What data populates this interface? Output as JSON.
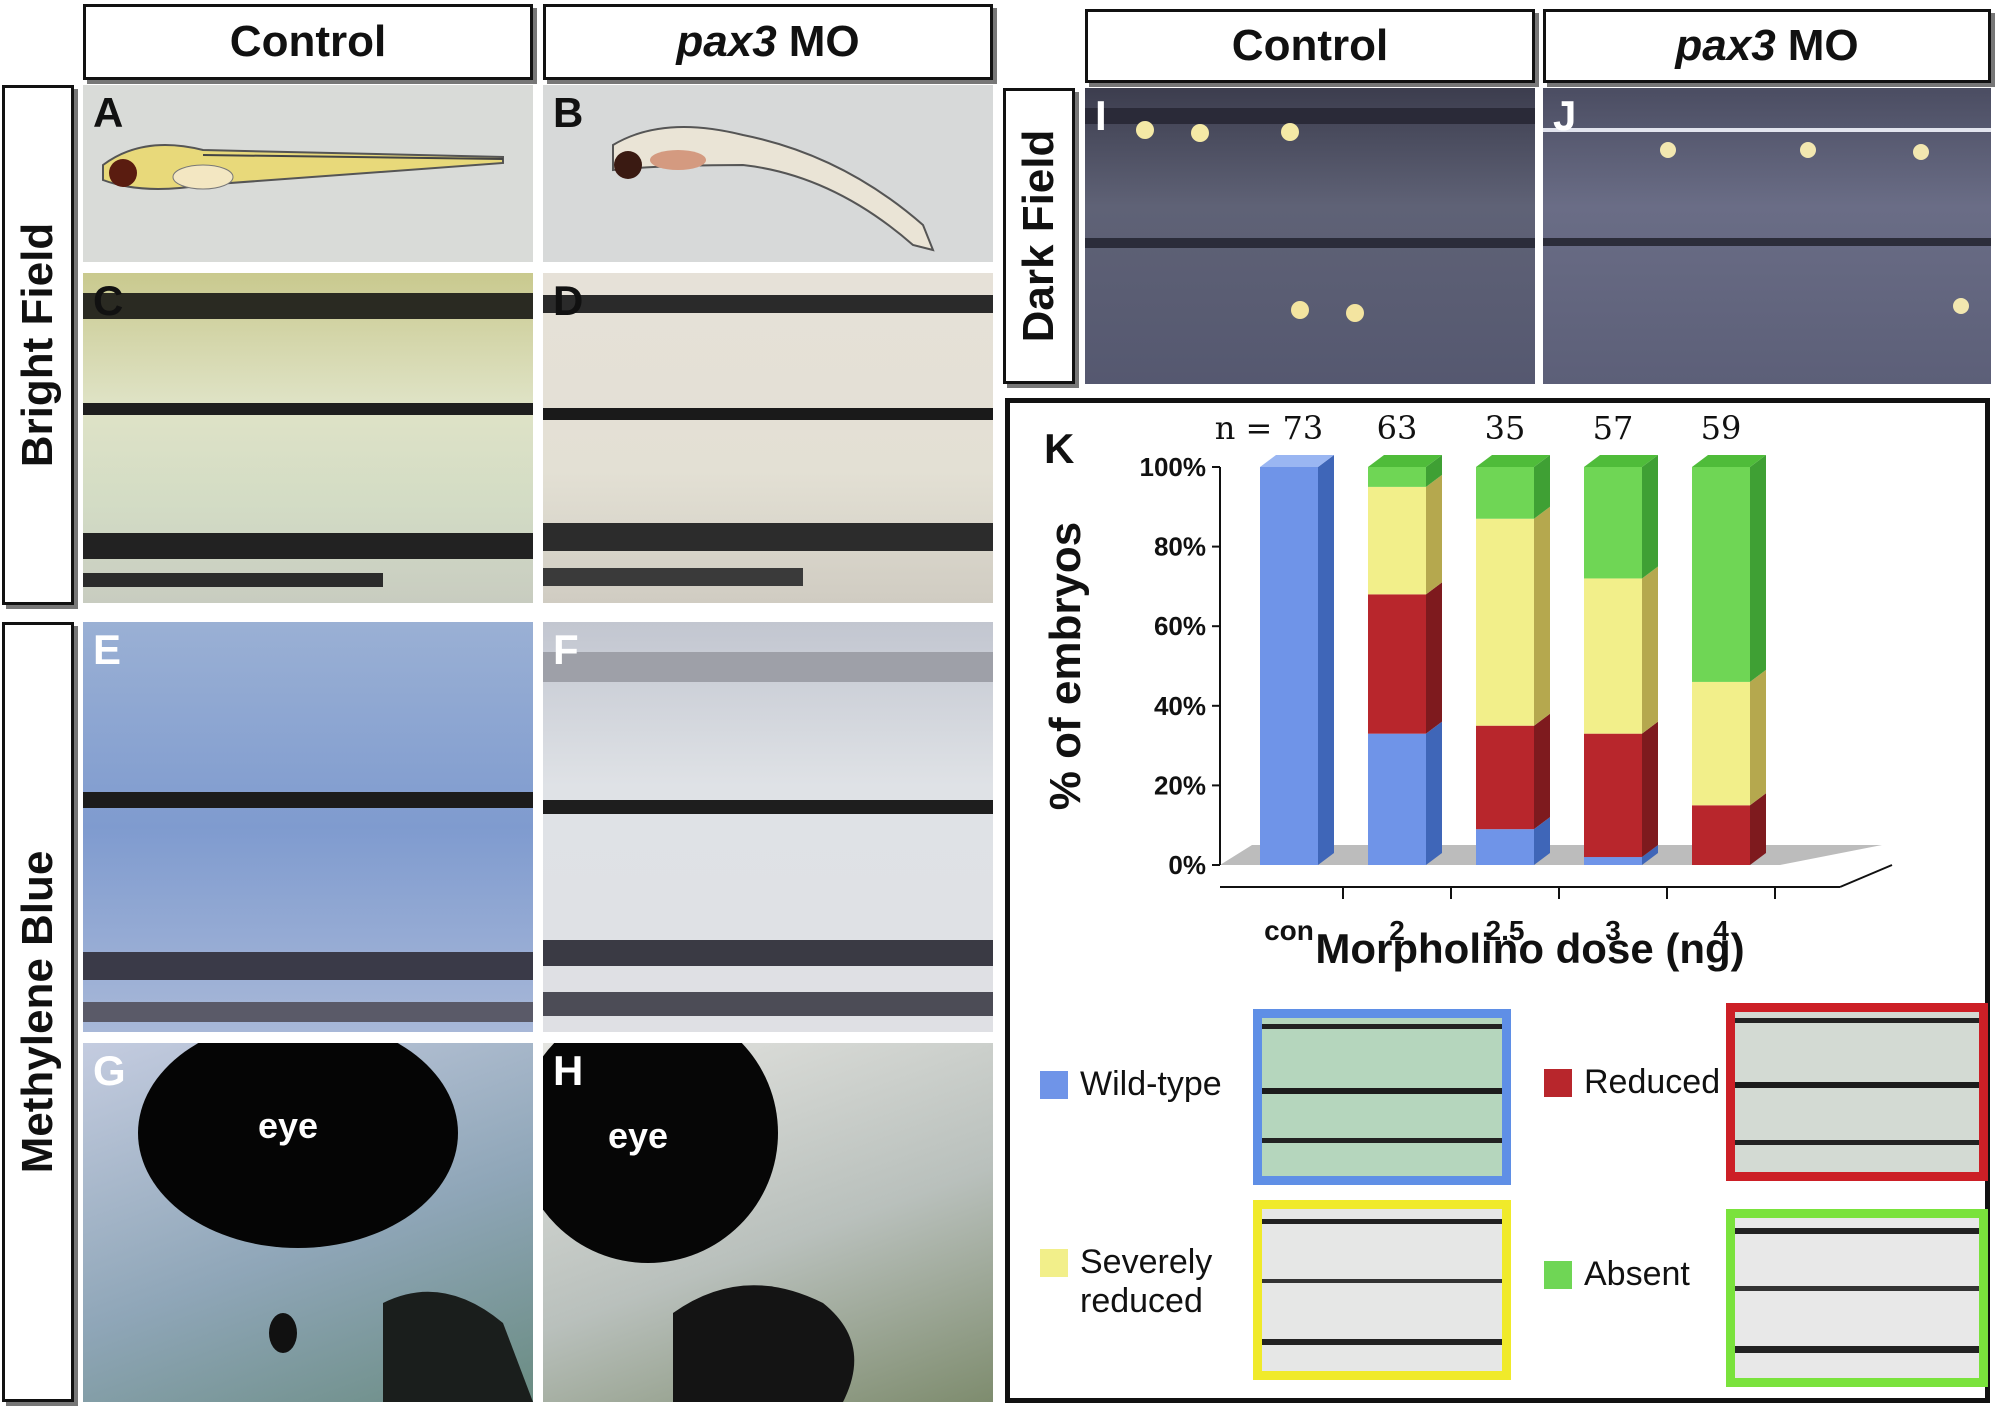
{
  "left_headers": {
    "control": "Control",
    "pax3_italic": "pax3",
    "mo": "MO"
  },
  "right_headers": {
    "control": "Control",
    "pax3_italic": "pax3",
    "mo": "MO"
  },
  "row_labels": {
    "bright": "Bright Field",
    "methylene": "Methylene Blue",
    "dark": "Dark Field"
  },
  "panel_letters": {
    "A": "A",
    "B": "B",
    "C": "C",
    "D": "D",
    "E": "E",
    "F": "F",
    "G": "G",
    "H": "H",
    "I": "I",
    "J": "J",
    "K": "K"
  },
  "eye_labels": {
    "g": "eye",
    "h": "eye"
  },
  "legend": {
    "wild_type": "Wild-type",
    "reduced": "Reduced",
    "severely_1": "Severely",
    "severely_2": "reduced",
    "absent": "Absent"
  },
  "colors": {
    "wild_type": "#6f94e8",
    "reduced": "#b8262c",
    "severely_reduced": "#f2ef8a",
    "absent": "#6fd655"
  },
  "chart_data": {
    "type": "bar",
    "stacked": true,
    "categories": [
      "con",
      "2",
      "2.5",
      "3",
      "4"
    ],
    "n_prefix": "n = ",
    "n_values": [
      "73",
      "63",
      "35",
      "57",
      "59"
    ],
    "series": [
      {
        "name": "Wild-type",
        "values": [
          100,
          33,
          9,
          2,
          0
        ]
      },
      {
        "name": "Reduced",
        "values": [
          0,
          35,
          26,
          31,
          15
        ]
      },
      {
        "name": "Severely reduced",
        "values": [
          0,
          27,
          52,
          39,
          31
        ]
      },
      {
        "name": "Absent",
        "values": [
          0,
          5,
          13,
          28,
          54
        ]
      }
    ],
    "y_ticks": [
      "0%",
      "20%",
      "40%",
      "60%",
      "80%",
      "100%"
    ],
    "ylim": [
      0,
      100
    ],
    "ylabel": "% of embryos",
    "xlabel": "Morpholino dose (ng)"
  }
}
